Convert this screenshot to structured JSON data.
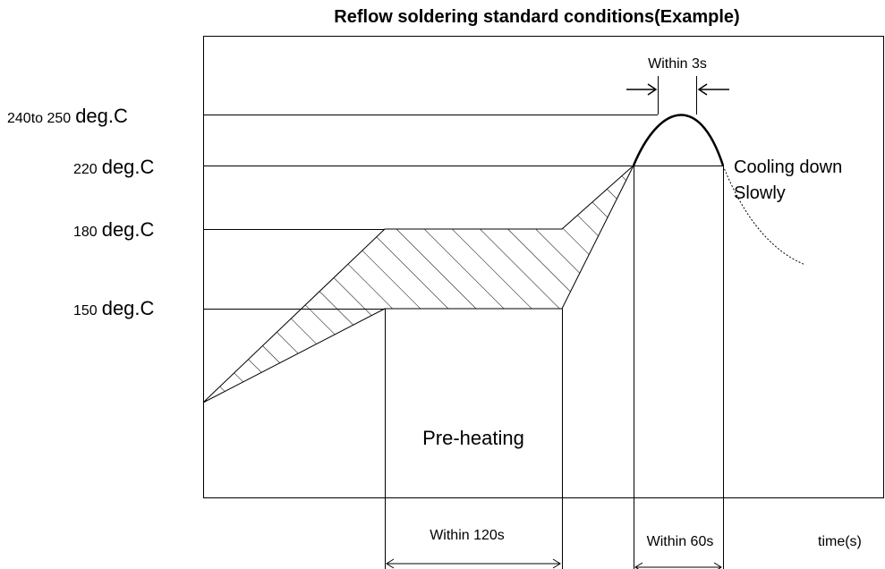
{
  "title": "Reflow soldering standard conditions(Example)",
  "temperature_labels": [
    {
      "value": "240to 250",
      "unit": "deg.C"
    },
    {
      "value": "220",
      "unit": "deg.C"
    },
    {
      "value": "180",
      "unit": "deg.C"
    },
    {
      "value": "150",
      "unit": "deg.C"
    }
  ],
  "peak_label": "Within 3s",
  "cooling_label": [
    "Cooling down",
    "Slowly"
  ],
  "preheat_label": "Pre-heating",
  "preheat_time": "Within 120s",
  "reflow_time": "Within 60s",
  "x_axis_label": "time(s)"
}
